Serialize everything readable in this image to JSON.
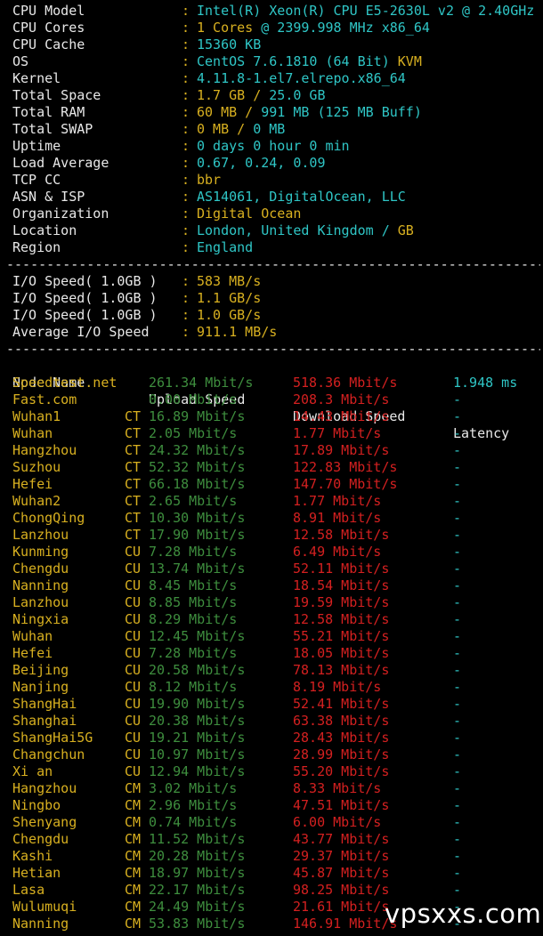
{
  "system_info": [
    {
      "key": "CPU Model",
      "parts": [
        {
          "text": "Intel(R) Xeon(R) CPU E5-2630L v2 @ 2.40GHz",
          "color": "cyan"
        }
      ]
    },
    {
      "key": "CPU Cores",
      "parts": [
        {
          "text": "1 Cores ",
          "color": "yellow"
        },
        {
          "text": "@ 2399.998 MHz x86_64",
          "color": "cyan"
        }
      ]
    },
    {
      "key": "CPU Cache",
      "parts": [
        {
          "text": "15360 KB",
          "color": "cyan"
        }
      ]
    },
    {
      "key": "OS",
      "parts": [
        {
          "text": "CentOS 7.6.1810 (64 Bit) ",
          "color": "cyan"
        },
        {
          "text": "KVM",
          "color": "yellow"
        }
      ]
    },
    {
      "key": "Kernel",
      "parts": [
        {
          "text": "4.11.8-1.el7.elrepo.x86_64",
          "color": "cyan"
        }
      ]
    },
    {
      "key": "Total Space",
      "parts": [
        {
          "text": "1.7 GB / ",
          "color": "yellow"
        },
        {
          "text": "25.0 GB",
          "color": "cyan"
        }
      ]
    },
    {
      "key": "Total RAM",
      "parts": [
        {
          "text": "60 MB / ",
          "color": "yellow"
        },
        {
          "text": "991 MB ",
          "color": "cyan"
        },
        {
          "text": "(125 MB Buff)",
          "color": "cyan"
        }
      ]
    },
    {
      "key": "Total SWAP",
      "parts": [
        {
          "text": "0 MB / ",
          "color": "yellow"
        },
        {
          "text": "0 MB",
          "color": "cyan"
        }
      ]
    },
    {
      "key": "Uptime",
      "parts": [
        {
          "text": "0 days 0 hour 0 min",
          "color": "cyan"
        }
      ]
    },
    {
      "key": "Load Average",
      "parts": [
        {
          "text": "0.67, 0.24, 0.09",
          "color": "cyan"
        }
      ]
    },
    {
      "key": "TCP CC",
      "parts": [
        {
          "text": "bbr",
          "color": "yellow"
        }
      ]
    },
    {
      "key": "ASN & ISP",
      "parts": [
        {
          "text": "AS14061, DigitalOcean, LLC",
          "color": "cyan"
        }
      ]
    },
    {
      "key": "Organization",
      "parts": [
        {
          "text": "Digital Ocean",
          "color": "yellow"
        }
      ]
    },
    {
      "key": "Location",
      "parts": [
        {
          "text": "London, United Kingdom / ",
          "color": "cyan"
        },
        {
          "text": "GB",
          "color": "yellow"
        }
      ]
    },
    {
      "key": "Region",
      "parts": [
        {
          "text": "England",
          "color": "cyan"
        }
      ]
    }
  ],
  "separator": "----------------------------------------------------------------------",
  "io_speed": [
    {
      "key": "I/O Speed( 1.0GB )",
      "value": "583 MB/s"
    },
    {
      "key": "I/O Speed( 1.0GB )",
      "value": "1.1 GB/s"
    },
    {
      "key": "I/O Speed( 1.0GB )",
      "value": "1.0 GB/s"
    },
    {
      "key": "Average I/O Speed",
      "value": "911.1 MB/s"
    }
  ],
  "speed_table": {
    "headers": {
      "node": "Node Name",
      "upload": "Upload Speed",
      "download": "Download Speed",
      "latency": "Latency"
    },
    "rows": [
      {
        "node": "Speedtest.net",
        "isp": "",
        "upload": "261.34 Mbit/s",
        "download": "518.36 Mbit/s",
        "latency": "1.948 ms"
      },
      {
        "node": "Fast.com",
        "isp": "",
        "upload": "0.00 Mbit/s",
        "download": "208.3 Mbit/s",
        "latency": "-"
      },
      {
        "node": "Wuhan1",
        "isp": "CT",
        "upload": "16.89 Mbit/s",
        "download": "14.43 Mbit/s",
        "latency": "-"
      },
      {
        "node": "Wuhan",
        "isp": "CT",
        "upload": "2.05 Mbit/s",
        "download": "1.77 Mbit/s",
        "latency": "-"
      },
      {
        "node": "Hangzhou",
        "isp": "CT",
        "upload": "24.32 Mbit/s",
        "download": "17.89 Mbit/s",
        "latency": "-"
      },
      {
        "node": "Suzhou",
        "isp": "CT",
        "upload": "52.32 Mbit/s",
        "download": "122.83 Mbit/s",
        "latency": "-"
      },
      {
        "node": "Hefei",
        "isp": "CT",
        "upload": "66.18 Mbit/s",
        "download": "147.70 Mbit/s",
        "latency": "-"
      },
      {
        "node": "Wuhan2",
        "isp": "CT",
        "upload": "2.65 Mbit/s",
        "download": "1.77 Mbit/s",
        "latency": "-"
      },
      {
        "node": "ChongQing",
        "isp": "CT",
        "upload": "10.30 Mbit/s",
        "download": "8.91 Mbit/s",
        "latency": "-"
      },
      {
        "node": "Lanzhou",
        "isp": "CT",
        "upload": "17.90 Mbit/s",
        "download": "12.58 Mbit/s",
        "latency": "-"
      },
      {
        "node": "Kunming",
        "isp": "CU",
        "upload": "7.28 Mbit/s",
        "download": "6.49 Mbit/s",
        "latency": "-"
      },
      {
        "node": "Chengdu",
        "isp": "CU",
        "upload": "13.74 Mbit/s",
        "download": "52.11 Mbit/s",
        "latency": "-"
      },
      {
        "node": "Nanning",
        "isp": "CU",
        "upload": "8.45 Mbit/s",
        "download": "18.54 Mbit/s",
        "latency": "-"
      },
      {
        "node": "Lanzhou",
        "isp": "CU",
        "upload": "8.85 Mbit/s",
        "download": "19.59 Mbit/s",
        "latency": "-"
      },
      {
        "node": "Ningxia",
        "isp": "CU",
        "upload": "8.29 Mbit/s",
        "download": "12.58 Mbit/s",
        "latency": "-"
      },
      {
        "node": "Wuhan",
        "isp": "CU",
        "upload": "12.45 Mbit/s",
        "download": "55.21 Mbit/s",
        "latency": "-"
      },
      {
        "node": "Hefei",
        "isp": "CU",
        "upload": "7.28 Mbit/s",
        "download": "18.05 Mbit/s",
        "latency": "-"
      },
      {
        "node": "Beijing",
        "isp": "CU",
        "upload": "20.58 Mbit/s",
        "download": "78.13 Mbit/s",
        "latency": "-"
      },
      {
        "node": "Nanjing",
        "isp": "CU",
        "upload": "8.12 Mbit/s",
        "download": "8.19 Mbit/s",
        "latency": "-"
      },
      {
        "node": "ShangHai",
        "isp": "CU",
        "upload": "19.90 Mbit/s",
        "download": "52.41 Mbit/s",
        "latency": "-"
      },
      {
        "node": "Shanghai",
        "isp": "CU",
        "upload": "20.38 Mbit/s",
        "download": "63.38 Mbit/s",
        "latency": "-"
      },
      {
        "node": "ShangHai5G",
        "isp": "CU",
        "upload": "19.21 Mbit/s",
        "download": "28.43 Mbit/s",
        "latency": "-"
      },
      {
        "node": "Changchun",
        "isp": "CU",
        "upload": "10.97 Mbit/s",
        "download": "28.99 Mbit/s",
        "latency": "-"
      },
      {
        "node": "Xi an",
        "isp": "CU",
        "upload": "12.94 Mbit/s",
        "download": "55.20 Mbit/s",
        "latency": "-"
      },
      {
        "node": "Hangzhou",
        "isp": "CM",
        "upload": "3.02 Mbit/s",
        "download": "8.33 Mbit/s",
        "latency": "-"
      },
      {
        "node": "Ningbo",
        "isp": "CM",
        "upload": "2.96 Mbit/s",
        "download": "47.51 Mbit/s",
        "latency": "-"
      },
      {
        "node": "Shenyang",
        "isp": "CM",
        "upload": "0.74 Mbit/s",
        "download": "6.00 Mbit/s",
        "latency": "-"
      },
      {
        "node": "Chengdu",
        "isp": "CM",
        "upload": "11.52 Mbit/s",
        "download": "43.77 Mbit/s",
        "latency": "-"
      },
      {
        "node": "Kashi",
        "isp": "CM",
        "upload": "20.28 Mbit/s",
        "download": "29.37 Mbit/s",
        "latency": "-"
      },
      {
        "node": "Hetian",
        "isp": "CM",
        "upload": "18.97 Mbit/s",
        "download": "45.87 Mbit/s",
        "latency": "-"
      },
      {
        "node": "Lasa",
        "isp": "CM",
        "upload": "22.17 Mbit/s",
        "download": "98.25 Mbit/s",
        "latency": "-"
      },
      {
        "node": "Wulumuqi",
        "isp": "CM",
        "upload": "24.49 Mbit/s",
        "download": "21.61 Mbit/s",
        "latency": "-"
      },
      {
        "node": "Nanning",
        "isp": "CM",
        "upload": "53.83 Mbit/s",
        "download": "146.91 Mbit/s",
        "latency": "-"
      }
    ]
  },
  "watermark": "vpsxxs.com"
}
